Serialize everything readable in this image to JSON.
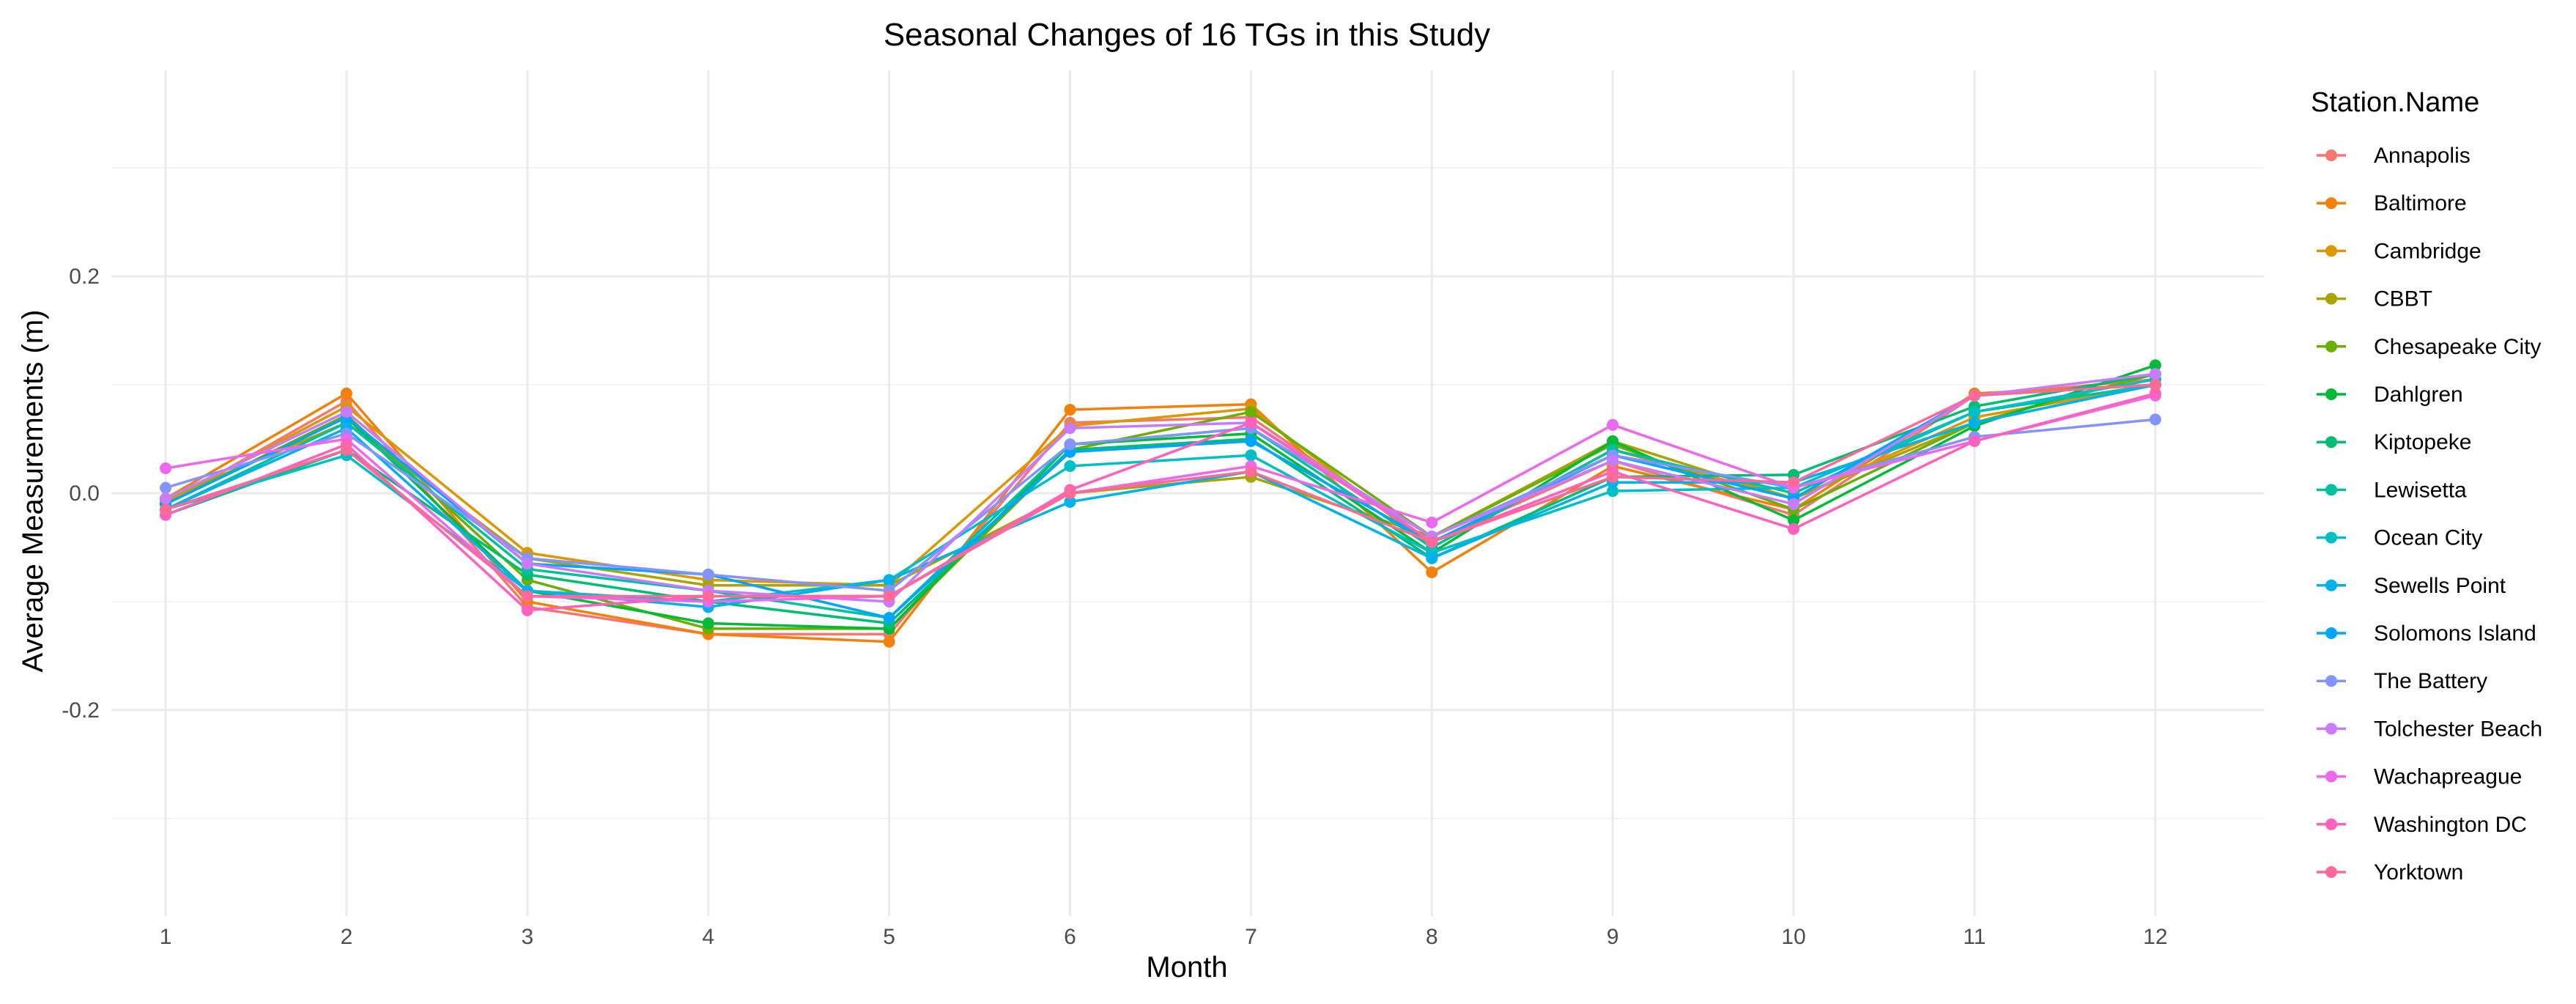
{
  "chart_data": {
    "type": "line",
    "title": "Seasonal Changes of 16 TGs in this Study",
    "xlabel": "Month",
    "ylabel": "Average Measurements (m)",
    "xlim": [
      0.7,
      12.6
    ],
    "ylim": [
      -0.39,
      0.39
    ],
    "x_ticks": [
      1,
      2,
      3,
      4,
      5,
      6,
      7,
      8,
      9,
      10,
      11,
      12
    ],
    "y_ticks": [
      -0.2,
      0.0,
      0.2
    ],
    "y_tick_labels": [
      "-0.2",
      "0.0",
      "0.2"
    ],
    "y_minor": [
      -0.3,
      -0.1,
      0.1,
      0.3
    ],
    "grid": true,
    "legend": {
      "title": "Station.Name",
      "position": "right"
    },
    "series": [
      {
        "name": "Annapolis",
        "color": "#F8766D",
        "values": [
          -0.01,
          0.085,
          -0.105,
          -0.13,
          -0.13,
          0.065,
          0.07,
          -0.045,
          0.03,
          -0.02,
          0.09,
          0.105
        ]
      },
      {
        "name": "Baltimore",
        "color": "#F2810B",
        "values": [
          -0.005,
          0.092,
          -0.1,
          -0.13,
          -0.137,
          0.077,
          0.082,
          -0.073,
          0.025,
          -0.015,
          0.092,
          0.1
        ]
      },
      {
        "name": "Cambridge",
        "color": "#DC9800",
        "values": [
          -0.008,
          0.08,
          -0.055,
          -0.08,
          -0.085,
          0.062,
          0.078,
          -0.05,
          0.04,
          -0.005,
          0.07,
          0.1
        ]
      },
      {
        "name": "CBBT",
        "color": "#AAA300",
        "values": [
          -0.005,
          0.065,
          -0.06,
          -0.085,
          -0.085,
          0.0,
          0.015,
          -0.04,
          0.048,
          -0.005,
          0.065,
          0.1
        ]
      },
      {
        "name": "Chesapeake City",
        "color": "#6CAF00",
        "values": [
          -0.01,
          0.072,
          -0.08,
          -0.125,
          -0.125,
          0.04,
          0.075,
          -0.04,
          0.045,
          -0.015,
          0.065,
          0.11
        ]
      },
      {
        "name": "Dahlgren",
        "color": "#00BA38",
        "values": [
          -0.01,
          0.07,
          -0.09,
          -0.12,
          -0.125,
          0.045,
          0.055,
          -0.055,
          0.048,
          -0.025,
          0.062,
          0.118
        ]
      },
      {
        "name": "Kiptopeke",
        "color": "#00BD72",
        "values": [
          -0.02,
          0.04,
          -0.075,
          -0.1,
          -0.12,
          0.04,
          0.05,
          -0.06,
          0.015,
          0.017,
          0.08,
          0.11
        ]
      },
      {
        "name": "Lewisetta",
        "color": "#00C0A0",
        "values": [
          -0.015,
          0.065,
          -0.07,
          -0.09,
          -0.115,
          0.045,
          0.06,
          -0.05,
          0.04,
          0.0,
          0.075,
          0.1
        ]
      },
      {
        "name": "Ocean City",
        "color": "#00BFC4",
        "values": [
          -0.015,
          0.035,
          -0.09,
          -0.1,
          -0.08,
          0.025,
          0.035,
          -0.055,
          0.002,
          0.005,
          0.075,
          0.105
        ]
      },
      {
        "name": "Sewells Point",
        "color": "#00B2E7",
        "values": [
          -0.015,
          0.06,
          -0.09,
          -0.105,
          -0.08,
          -0.008,
          0.02,
          -0.06,
          0.01,
          0.01,
          0.065,
          0.1
        ]
      },
      {
        "name": "Solomons Island",
        "color": "#00A5FF",
        "values": [
          -0.01,
          0.07,
          -0.065,
          -0.075,
          -0.115,
          0.038,
          0.048,
          -0.045,
          0.035,
          -0.005,
          0.09,
          0.1
        ]
      },
      {
        "name": "The Battery",
        "color": "#8494FF",
        "values": [
          0.005,
          0.055,
          -0.06,
          -0.075,
          -0.09,
          0.045,
          0.06,
          -0.04,
          0.035,
          0.005,
          0.052,
          0.068
        ]
      },
      {
        "name": "Tolchester Beach",
        "color": "#C77CFF",
        "values": [
          -0.005,
          0.075,
          -0.065,
          -0.09,
          -0.1,
          0.06,
          0.065,
          -0.04,
          0.03,
          -0.01,
          0.09,
          0.11
        ]
      },
      {
        "name": "Wachapreague",
        "color": "#EC69EF",
        "values": [
          0.023,
          0.05,
          -0.095,
          -0.1,
          -0.095,
          0.0,
          0.025,
          -0.027,
          0.063,
          0.005,
          0.048,
          0.09
        ]
      },
      {
        "name": "Washington DC",
        "color": "#FF62BC",
        "values": [
          -0.02,
          0.045,
          -0.108,
          -0.095,
          -0.095,
          0.003,
          0.065,
          -0.045,
          0.02,
          -0.033,
          0.048,
          0.092
        ]
      },
      {
        "name": "Yorktown",
        "color": "#FF6A98",
        "values": [
          -0.015,
          0.04,
          -0.095,
          -0.095,
          -0.095,
          0.0,
          0.02,
          -0.045,
          0.015,
          0.01,
          0.09,
          0.1
        ]
      }
    ]
  }
}
